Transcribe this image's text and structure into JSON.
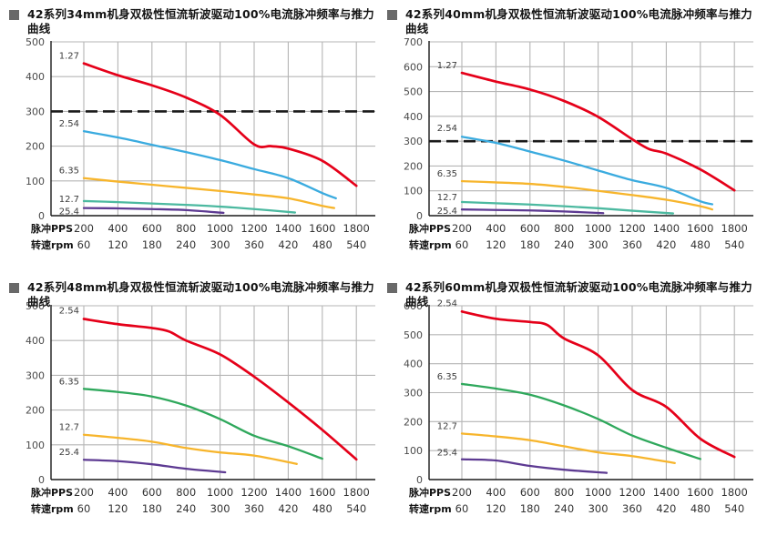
{
  "colors": {
    "grid": "#b5b5b5",
    "axis": "#1a1a1a",
    "dashed_line": "#1a1a1a",
    "tick_text": "#4a4a4a",
    "title_text": "#141414",
    "bullet": "#696969",
    "red": "#e50019",
    "blue": "#3aabdf",
    "yellow": "#f7b52c",
    "teal": "#4cb9a0",
    "purple": "#5d3a92",
    "green": "#2fa85c"
  },
  "x_axis": {
    "pps_label": "脉冲PPS",
    "rpm_label": "转速rpm",
    "pps_ticks": [
      200,
      400,
      600,
      800,
      1000,
      1200,
      1400,
      1600,
      1800
    ],
    "rpm_ticks": [
      60,
      120,
      180,
      240,
      300,
      360,
      420,
      480,
      540
    ]
  },
  "chart_data": [
    {
      "type": "line",
      "title": "42系列34mm机身双极性恒流斩波驱动100%电流脉冲频率与推力曲线",
      "xlabel": "脉冲PPS / 转速rpm",
      "ylabel": "",
      "ylim": [
        0,
        500
      ],
      "ystep": 100,
      "grid": true,
      "dashed_y": 300,
      "series": [
        {
          "name": "1.27",
          "color": "#e50019",
          "width": 2.7,
          "label_dy": -5,
          "x": [
            200,
            400,
            600,
            800,
            1000,
            1200,
            1300,
            1400,
            1600,
            1800
          ],
          "values": [
            438,
            404,
            375,
            340,
            290,
            205,
            200,
            193,
            158,
            86
          ]
        },
        {
          "name": "2.54",
          "color": "#3aabdf",
          "width": 2.3,
          "label_dy": -5,
          "x": [
            200,
            400,
            600,
            800,
            1000,
            1200,
            1400,
            1600,
            1680
          ],
          "values": [
            243,
            225,
            204,
            183,
            160,
            134,
            108,
            65,
            50
          ]
        },
        {
          "name": "6.35",
          "color": "#f7b52c",
          "width": 2.3,
          "label_dy": -5,
          "x": [
            200,
            400,
            600,
            800,
            1000,
            1200,
            1400,
            1600,
            1670
          ],
          "values": [
            108,
            98,
            89,
            80,
            71,
            61,
            50,
            28,
            22
          ]
        },
        {
          "name": "12.7",
          "color": "#4cb9a0",
          "width": 2.3,
          "label_dy": 1,
          "x": [
            200,
            400,
            600,
            800,
            1000,
            1200,
            1440
          ],
          "values": [
            42,
            39,
            35,
            31,
            26,
            19,
            9
          ]
        },
        {
          "name": "25.4",
          "color": "#5d3a92",
          "width": 2.3,
          "label_dy": 7,
          "x": [
            200,
            400,
            600,
            800,
            1020
          ],
          "values": [
            22,
            21,
            19,
            16,
            8
          ]
        }
      ]
    },
    {
      "type": "line",
      "title": "42系列40mm机身双极性恒流斩波驱动100%电流脉冲频率与推力曲线",
      "xlabel": "脉冲PPS / 转速rpm",
      "ylabel": "",
      "ylim": [
        0,
        700
      ],
      "ystep": 100,
      "grid": true,
      "dashed_y": 300,
      "series": [
        {
          "name": "1.27",
          "color": "#e50019",
          "width": 2.7,
          "label_dy": -5,
          "x": [
            200,
            400,
            600,
            800,
            1000,
            1200,
            1300,
            1400,
            1600,
            1800
          ],
          "values": [
            575,
            540,
            508,
            462,
            398,
            308,
            268,
            250,
            186,
            102
          ]
        },
        {
          "name": "2.54",
          "color": "#3aabdf",
          "width": 2.3,
          "label_dy": -6,
          "x": [
            200,
            400,
            600,
            800,
            1000,
            1200,
            1400,
            1600,
            1670
          ],
          "values": [
            318,
            293,
            258,
            222,
            182,
            143,
            112,
            58,
            46
          ]
        },
        {
          "name": "6.35",
          "color": "#f7b52c",
          "width": 2.3,
          "label_dy": -5,
          "x": [
            200,
            400,
            600,
            800,
            1000,
            1200,
            1400,
            1600,
            1670
          ],
          "values": [
            139,
            134,
            128,
            116,
            100,
            83,
            64,
            38,
            25
          ]
        },
        {
          "name": "12.7",
          "color": "#4cb9a0",
          "width": 2.3,
          "label_dy": -2,
          "x": [
            200,
            400,
            600,
            800,
            1000,
            1200,
            1440
          ],
          "values": [
            55,
            50,
            45,
            38,
            30,
            20,
            9
          ]
        },
        {
          "name": "25.4",
          "color": "#5d3a92",
          "width": 2.3,
          "label_dy": 5,
          "x": [
            200,
            400,
            600,
            800,
            1030
          ],
          "values": [
            25,
            23,
            21,
            17,
            10
          ]
        }
      ]
    },
    {
      "type": "line",
      "title": "42系列48mm机身双极性恒流斩波驱动100%电流脉冲频率与推力曲线",
      "xlabel": "脉冲PPS / 转速rpm",
      "ylabel": "",
      "ylim": [
        0,
        500
      ],
      "ystep": 100,
      "grid": true,
      "dashed_y": null,
      "series": [
        {
          "name": "2.54",
          "color": "#e50019",
          "width": 2.7,
          "label_dy": -6,
          "x": [
            200,
            400,
            600,
            700,
            800,
            1000,
            1200,
            1400,
            1600,
            1800
          ],
          "values": [
            462,
            447,
            436,
            426,
            400,
            360,
            296,
            222,
            143,
            58
          ]
        },
        {
          "name": "6.35",
          "color": "#2fa85c",
          "width": 2.3,
          "label_dy": -5,
          "x": [
            200,
            400,
            600,
            800,
            1000,
            1200,
            1400,
            1600
          ],
          "values": [
            261,
            252,
            239,
            213,
            174,
            126,
            96,
            60
          ]
        },
        {
          "name": "12.7",
          "color": "#f7b52c",
          "width": 2.3,
          "label_dy": -5,
          "x": [
            200,
            400,
            600,
            800,
            1000,
            1200,
            1450
          ],
          "values": [
            129,
            120,
            109,
            91,
            78,
            69,
            45
          ]
        },
        {
          "name": "25.4",
          "color": "#5d3a92",
          "width": 2.3,
          "label_dy": -5,
          "x": [
            200,
            400,
            600,
            800,
            1030
          ],
          "values": [
            57,
            53,
            44,
            31,
            21
          ]
        }
      ]
    },
    {
      "type": "line",
      "title": "42系列60mm机身双极性恒流斩波驱动100%电流脉冲频率与推力曲线",
      "xlabel": "脉冲PPS / 转速rpm",
      "ylabel": "",
      "ylim": [
        0,
        600
      ],
      "ystep": 100,
      "grid": true,
      "dashed_y": null,
      "series": [
        {
          "name": "2.54",
          "color": "#e50019",
          "width": 2.7,
          "label_dy": -6,
          "x": [
            200,
            400,
            600,
            700,
            800,
            1000,
            1200,
            1400,
            1600,
            1800
          ],
          "values": [
            580,
            555,
            544,
            534,
            487,
            429,
            309,
            251,
            141,
            78
          ]
        },
        {
          "name": "6.35",
          "color": "#2fa85c",
          "width": 2.3,
          "label_dy": -5,
          "x": [
            200,
            400,
            600,
            800,
            1000,
            1200,
            1400,
            1600
          ],
          "values": [
            330,
            314,
            293,
            256,
            209,
            152,
            110,
            71
          ]
        },
        {
          "name": "12.7",
          "color": "#f7b52c",
          "width": 2.3,
          "label_dy": -5,
          "x": [
            200,
            400,
            600,
            800,
            1000,
            1200,
            1450
          ],
          "values": [
            159,
            149,
            136,
            115,
            94,
            81,
            57
          ]
        },
        {
          "name": "25.4",
          "color": "#5d3a92",
          "width": 2.3,
          "label_dy": -4,
          "x": [
            200,
            400,
            600,
            800,
            1050
          ],
          "values": [
            70,
            66,
            47,
            34,
            23
          ]
        }
      ]
    }
  ]
}
